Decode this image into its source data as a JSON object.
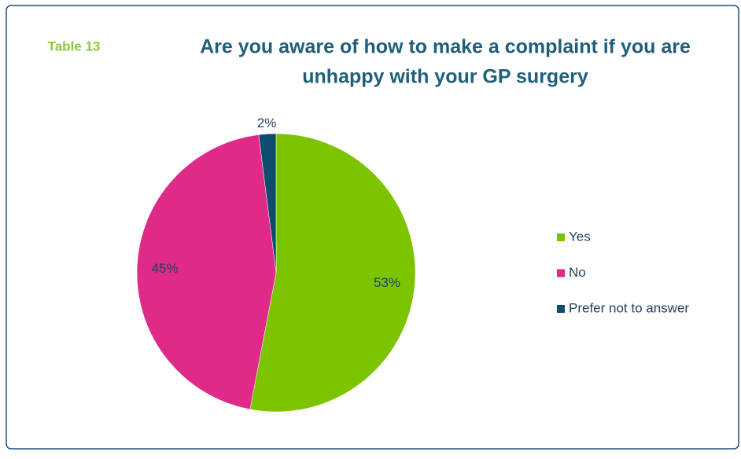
{
  "chart_data": {
    "type": "pie",
    "annotation": "Table 13",
    "title": [
      "Are you aware of how to make a complaint if you are",
      "unhappy with your GP surgery"
    ],
    "categories": [
      "Yes",
      "No",
      "Prefer not to answer"
    ],
    "values": [
      53,
      45,
      2
    ],
    "value_labels": [
      "53%",
      "45%",
      "2%"
    ],
    "colors": [
      "#7cc400",
      "#e02a88",
      "#0e4d6e"
    ],
    "legend": "right"
  }
}
